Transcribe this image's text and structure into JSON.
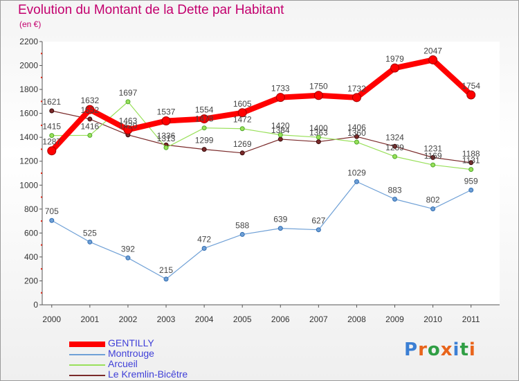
{
  "title": "Evolution du Montant de la Dette par Habitant",
  "unit": "(en €)",
  "logo": {
    "text": "Proxiti",
    "letters": [
      "P",
      "r",
      "o",
      "x",
      "i",
      "t",
      "i"
    ],
    "colors": [
      "#3b7fd4",
      "#e8641b",
      "#2f9e44",
      "#e8641b",
      "#3b7fd4",
      "#2f9e44",
      "#e8641b"
    ]
  },
  "chart_data": {
    "type": "line",
    "title": "Evolution du Montant de la Dette par Habitant",
    "ylabel": "(en €)",
    "xlabel": "",
    "ylim": [
      0,
      2200
    ],
    "yticks": [
      0,
      200,
      400,
      600,
      800,
      1000,
      1200,
      1400,
      1600,
      1800,
      2000,
      2200
    ],
    "grid": false,
    "legend_position": "bottom-left",
    "x": [
      "2000",
      "2001",
      "2002",
      "2003",
      "2004",
      "2005",
      "2006",
      "2007",
      "2008",
      "2009",
      "2010",
      "2011"
    ],
    "series": [
      {
        "name": "GENTILLY",
        "color": "#ff0000",
        "values": [
          1287,
          1632,
          1463,
          1537,
          1554,
          1605,
          1733,
          1750,
          1732,
          1979,
          2047,
          1754
        ]
      },
      {
        "name": "Montrouge",
        "color": "#6fa0d6",
        "values": [
          705,
          525,
          392,
          215,
          472,
          588,
          639,
          627,
          1029,
          883,
          802,
          959
        ]
      },
      {
        "name": "Arcueil",
        "color": "#99e05a",
        "values": [
          1415,
          1416,
          1697,
          1313,
          1478,
          1472,
          1420,
          1400,
          1360,
          1239,
          1169,
          1131
        ]
      },
      {
        "name": "Le Kremlin-Bicêtre",
        "color": "#7a2a2a",
        "values": [
          1621,
          1552,
          1420,
          1336,
          1299,
          1269,
          1384,
          1363,
          1406,
          1324,
          1231,
          1188
        ]
      }
    ]
  }
}
